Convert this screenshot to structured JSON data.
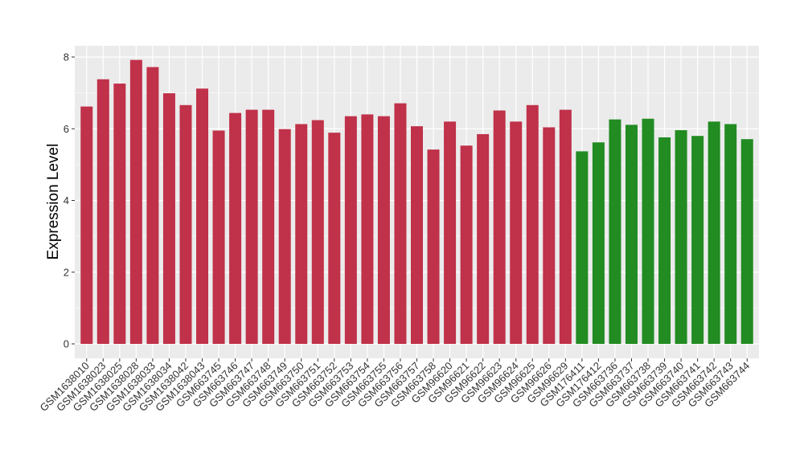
{
  "chart_data": {
    "type": "bar",
    "title": "",
    "xlabel": "",
    "ylabel": "Expression Level",
    "ylim": [
      0,
      8.3
    ],
    "yticks": [
      0,
      2,
      4,
      6,
      8
    ],
    "grid": true,
    "legend": "none",
    "categories": [
      "GSM1638010",
      "GSM1638023",
      "GSM1638025",
      "GSM1638028",
      "GSM1638033",
      "GSM1638034",
      "GSM1638042",
      "GSM1638043",
      "GSM663745",
      "GSM663746",
      "GSM663747",
      "GSM663748",
      "GSM663749",
      "GSM663750",
      "GSM663751",
      "GSM663752",
      "GSM663753",
      "GSM663754",
      "GSM663755",
      "GSM663756",
      "GSM663757",
      "GSM663758",
      "GSM96620",
      "GSM96621",
      "GSM96622",
      "GSM96623",
      "GSM96624",
      "GSM96625",
      "GSM96626",
      "GSM96629",
      "GSM176411",
      "GSM176412",
      "GSM663736",
      "GSM663737",
      "GSM663738",
      "GSM663739",
      "GSM663740",
      "GSM663741",
      "GSM663742",
      "GSM663743",
      "GSM663744"
    ],
    "values": [
      6.62,
      7.38,
      7.26,
      7.92,
      7.72,
      6.99,
      6.66,
      7.12,
      5.95,
      6.44,
      6.53,
      6.53,
      5.99,
      6.13,
      6.24,
      5.89,
      6.35,
      6.4,
      6.35,
      6.71,
      6.07,
      5.42,
      6.2,
      5.53,
      5.85,
      6.51,
      6.2,
      6.66,
      6.04,
      6.53,
      5.37,
      5.62,
      6.26,
      6.11,
      6.28,
      5.76,
      5.96,
      5.8,
      6.2,
      6.13,
      5.71
    ],
    "groups": [
      "red",
      "red",
      "red",
      "red",
      "red",
      "red",
      "red",
      "red",
      "red",
      "red",
      "red",
      "red",
      "red",
      "red",
      "red",
      "red",
      "red",
      "red",
      "red",
      "red",
      "red",
      "red",
      "red",
      "red",
      "red",
      "red",
      "red",
      "red",
      "red",
      "red",
      "green",
      "green",
      "green",
      "green",
      "green",
      "green",
      "green",
      "green",
      "green",
      "green",
      "green"
    ],
    "colors": {
      "red": "#c0314a",
      "green": "#228b22",
      "panel": "#ebebeb",
      "grid": "#ffffff"
    }
  }
}
